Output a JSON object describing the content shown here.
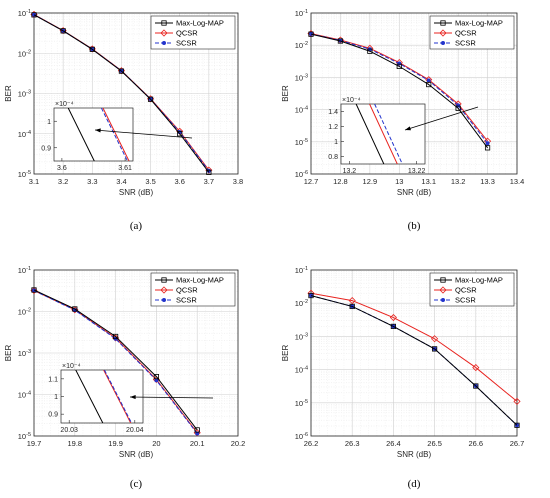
{
  "figure": {
    "legend": [
      "Max-Log-MAP",
      "QCSR",
      "SCSR"
    ],
    "colors": {
      "Max-Log-MAP": "#000000",
      "QCSR": "#e8231f",
      "SCSR": "#2233cc"
    }
  },
  "chart_data": [
    {
      "label": "(a)",
      "type": "line",
      "ylog": true,
      "xlabel": "SNR (dB)",
      "ylabel": "BER",
      "xlim": [
        3.1,
        3.8
      ],
      "ylim_exp": [
        -5,
        -1
      ],
      "xticks": [
        "3.1",
        "3.2",
        "3.3",
        "3.4",
        "3.5",
        "3.6",
        "3.7",
        "3.8"
      ],
      "yticks": [
        "10^-1",
        "10^-2",
        "10^-3",
        "10^-4",
        "10^-5"
      ],
      "x": [
        3.1,
        3.2,
        3.3,
        3.4,
        3.5,
        3.6,
        3.7
      ],
      "series": [
        {
          "name": "Max-Log-MAP",
          "values": [
            0.09,
            0.036,
            0.0125,
            0.0036,
            0.00072,
            0.0001,
            1.1e-05
          ]
        },
        {
          "name": "QCSR",
          "values": [
            0.092,
            0.0365,
            0.0128,
            0.0037,
            0.00074,
            0.000115,
            1.25e-05
          ]
        },
        {
          "name": "SCSR",
          "values": [
            0.091,
            0.0362,
            0.0126,
            0.00365,
            0.00073,
            0.00011,
            1.2e-05
          ]
        }
      ],
      "inset": {
        "multiplier": "×10⁻⁴",
        "xticks": [
          "3.6",
          "3.61"
        ],
        "yticks": [
          "1",
          "0.9"
        ]
      }
    },
    {
      "label": "(b)",
      "type": "line",
      "ylog": true,
      "xlabel": "SNR (dB)",
      "ylabel": "BER",
      "xlim": [
        12.7,
        13.4
      ],
      "ylim_exp": [
        -6,
        -1
      ],
      "xticks": [
        "12.7",
        "12.8",
        "12.9",
        "13",
        "13.1",
        "13.2",
        "13.3",
        "13.4"
      ],
      "yticks": [
        "10^-1",
        "10^-2",
        "10^-3",
        "10^-4",
        "10^-5",
        "10^-6"
      ],
      "x": [
        12.7,
        12.8,
        12.9,
        13.0,
        13.1,
        13.2,
        13.3
      ],
      "series": [
        {
          "name": "Max-Log-MAP",
          "values": [
            0.022,
            0.0135,
            0.0065,
            0.0022,
            0.0006,
            0.00011,
            6.5e-06
          ]
        },
        {
          "name": "QCSR",
          "values": [
            0.023,
            0.0145,
            0.008,
            0.0029,
            0.00085,
            0.00015,
            1.05e-05
          ]
        },
        {
          "name": "SCSR",
          "values": [
            0.0225,
            0.014,
            0.0075,
            0.0027,
            0.0008,
            0.000135,
            9e-06
          ]
        }
      ],
      "inset": {
        "multiplier": "×10⁻⁴",
        "xticks": [
          "13.2",
          "13.22"
        ],
        "yticks": [
          "1.4",
          "1.2",
          "1",
          "0.8"
        ]
      }
    },
    {
      "label": "(c)",
      "type": "line",
      "ylog": true,
      "xlabel": "SNR (dB)",
      "ylabel": "BER",
      "xlim": [
        19.7,
        20.2
      ],
      "ylim_exp": [
        -5,
        -1
      ],
      "xticks": [
        "19.7",
        "19.8",
        "19.9",
        "20",
        "20.1",
        "20.2"
      ],
      "yticks": [
        "10^-1",
        "10^-2",
        "10^-3",
        "10^-4",
        "10^-5"
      ],
      "x": [
        19.7,
        19.8,
        19.9,
        20.0,
        20.1
      ],
      "series": [
        {
          "name": "Max-Log-MAP",
          "values": [
            0.033,
            0.0115,
            0.0025,
            0.00027,
            1.4e-05
          ]
        },
        {
          "name": "QCSR",
          "values": [
            0.032,
            0.011,
            0.0023,
            0.00023,
            1.2e-05
          ]
        },
        {
          "name": "SCSR",
          "values": [
            0.032,
            0.0108,
            0.0022,
            0.00022,
            1.15e-05
          ]
        }
      ],
      "inset": {
        "multiplier": "×10⁻⁴",
        "xticks": [
          "20.03",
          "20.04"
        ],
        "yticks": [
          "1.1",
          "1",
          "0.9"
        ]
      }
    },
    {
      "label": "(d)",
      "type": "line",
      "ylog": true,
      "xlabel": "SNR (dB)",
      "ylabel": "BER",
      "xlim": [
        26.2,
        26.7
      ],
      "ylim_exp": [
        -6,
        -1
      ],
      "xticks": [
        "26.2",
        "26.3",
        "26.4",
        "26.5",
        "26.6",
        "26.7"
      ],
      "yticks": [
        "10^-1",
        "10^-2",
        "10^-3",
        "10^-4",
        "10^-5",
        "10^-6"
      ],
      "x": [
        26.2,
        26.3,
        26.4,
        26.5,
        26.6,
        26.7
      ],
      "series": [
        {
          "name": "Max-Log-MAP",
          "values": [
            0.017,
            0.008,
            0.002,
            0.00042,
            3.2e-05,
            2.1e-06
          ]
        },
        {
          "name": "QCSR",
          "values": [
            0.02,
            0.012,
            0.0037,
            0.00085,
            0.000115,
            1.1e-05
          ]
        },
        {
          "name": "SCSR",
          "values": [
            0.017,
            0.008,
            0.002,
            0.00042,
            3.2e-05,
            2.1e-06
          ]
        }
      ]
    }
  ]
}
